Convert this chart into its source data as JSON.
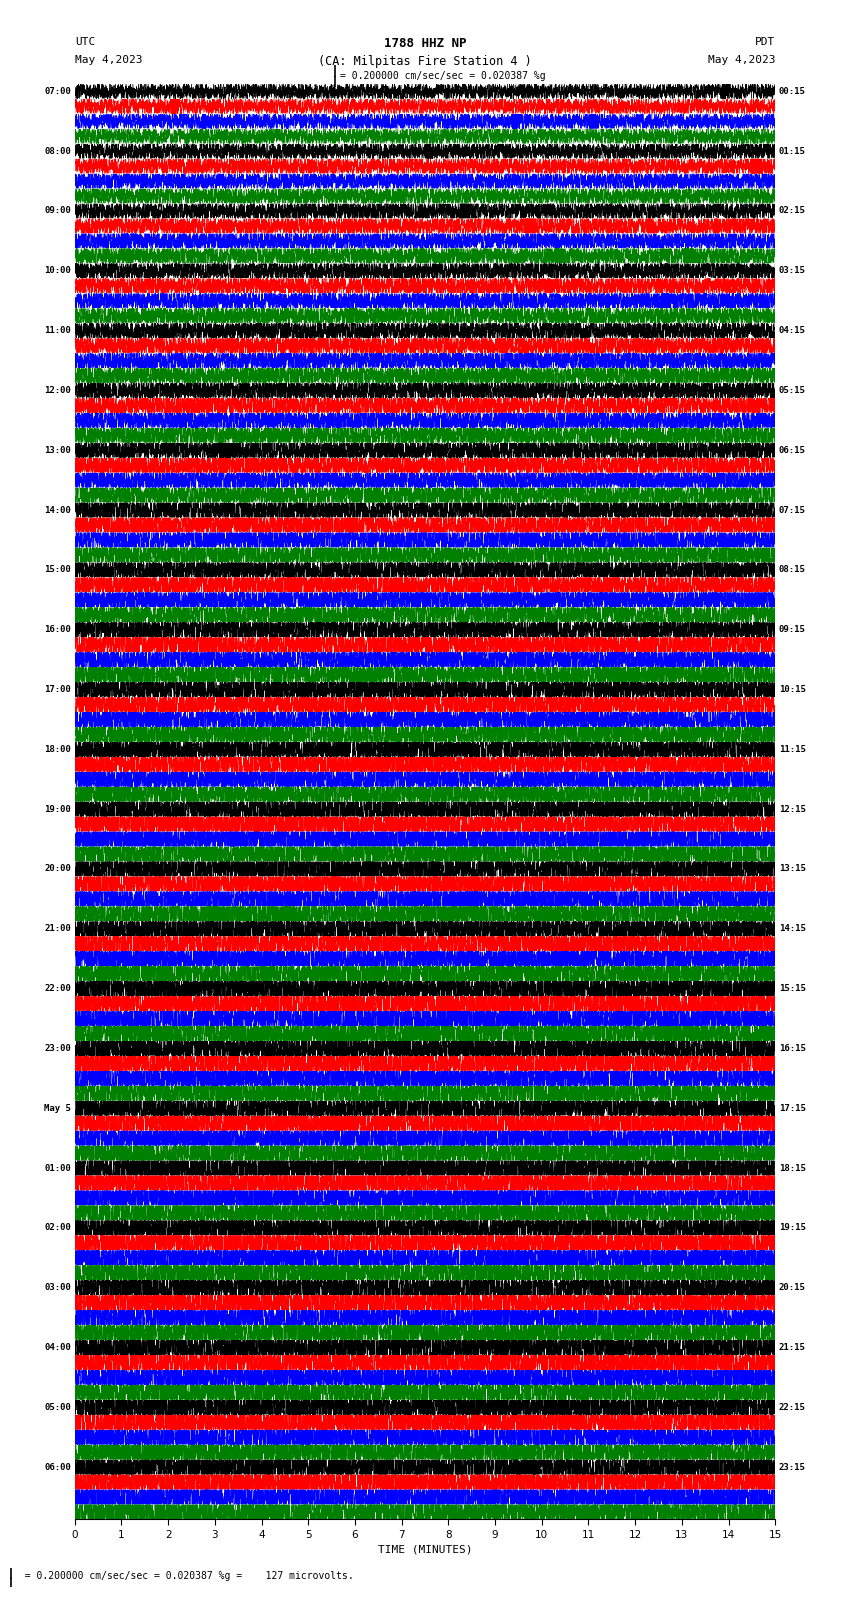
{
  "title_line1": "1788 HHZ NP",
  "title_line2": "(CA: Milpitas Fire Station 4 )",
  "scale_text": "= 0.200000 cm/sec/sec = 0.020387 %g",
  "bottom_text": "= 0.200000 cm/sec/sec = 0.020387 %g =    127 microvolts.",
  "utc_label": "UTC",
  "utc_date": "May 4,2023",
  "pdt_label": "PDT",
  "pdt_date": "May 4,2023",
  "xlabel": "TIME (MINUTES)",
  "num_rows": 96,
  "traces_per_row": 4,
  "colors": [
    "black",
    "red",
    "blue",
    "green"
  ],
  "bg_color": "white",
  "left_label_times": [
    "07:00",
    "",
    "",
    "",
    "08:00",
    "",
    "",
    "",
    "09:00",
    "",
    "",
    "",
    "10:00",
    "",
    "",
    "",
    "11:00",
    "",
    "",
    "",
    "12:00",
    "",
    "",
    "",
    "13:00",
    "",
    "",
    "",
    "14:00",
    "",
    "",
    "",
    "15:00",
    "",
    "",
    "",
    "16:00",
    "",
    "",
    "",
    "17:00",
    "",
    "",
    "",
    "18:00",
    "",
    "",
    "",
    "19:00",
    "",
    "",
    "",
    "20:00",
    "",
    "",
    "",
    "21:00",
    "",
    "",
    "",
    "22:00",
    "",
    "",
    "",
    "23:00",
    "",
    "",
    "",
    "May 5",
    "",
    "",
    "",
    "01:00",
    "",
    "",
    "",
    "02:00",
    "",
    "",
    "",
    "03:00",
    "",
    "",
    "",
    "04:00",
    "",
    "",
    "",
    "05:00",
    "",
    "",
    "",
    "06:00",
    "",
    "",
    ""
  ],
  "right_label_times": [
    "00:15",
    "",
    "",
    "",
    "01:15",
    "",
    "",
    "",
    "02:15",
    "",
    "",
    "",
    "03:15",
    "",
    "",
    "",
    "04:15",
    "",
    "",
    "",
    "05:15",
    "",
    "",
    "",
    "06:15",
    "",
    "",
    "",
    "07:15",
    "",
    "",
    "",
    "08:15",
    "",
    "",
    "",
    "09:15",
    "",
    "",
    "",
    "10:15",
    "",
    "",
    "",
    "11:15",
    "",
    "",
    "",
    "12:15",
    "",
    "",
    "",
    "13:15",
    "",
    "",
    "",
    "14:15",
    "",
    "",
    "",
    "15:15",
    "",
    "",
    "",
    "16:15",
    "",
    "",
    "",
    "17:15",
    "",
    "",
    "",
    "18:15",
    "",
    "",
    "",
    "19:15",
    "",
    "",
    "",
    "20:15",
    "",
    "",
    "",
    "21:15",
    "",
    "",
    "",
    "22:15",
    "",
    "",
    "",
    "23:15",
    "",
    "",
    ""
  ],
  "xmin": 0,
  "xmax": 15,
  "xticks": [
    0,
    1,
    2,
    3,
    4,
    5,
    6,
    7,
    8,
    9,
    10,
    11,
    12,
    13,
    14,
    15
  ]
}
